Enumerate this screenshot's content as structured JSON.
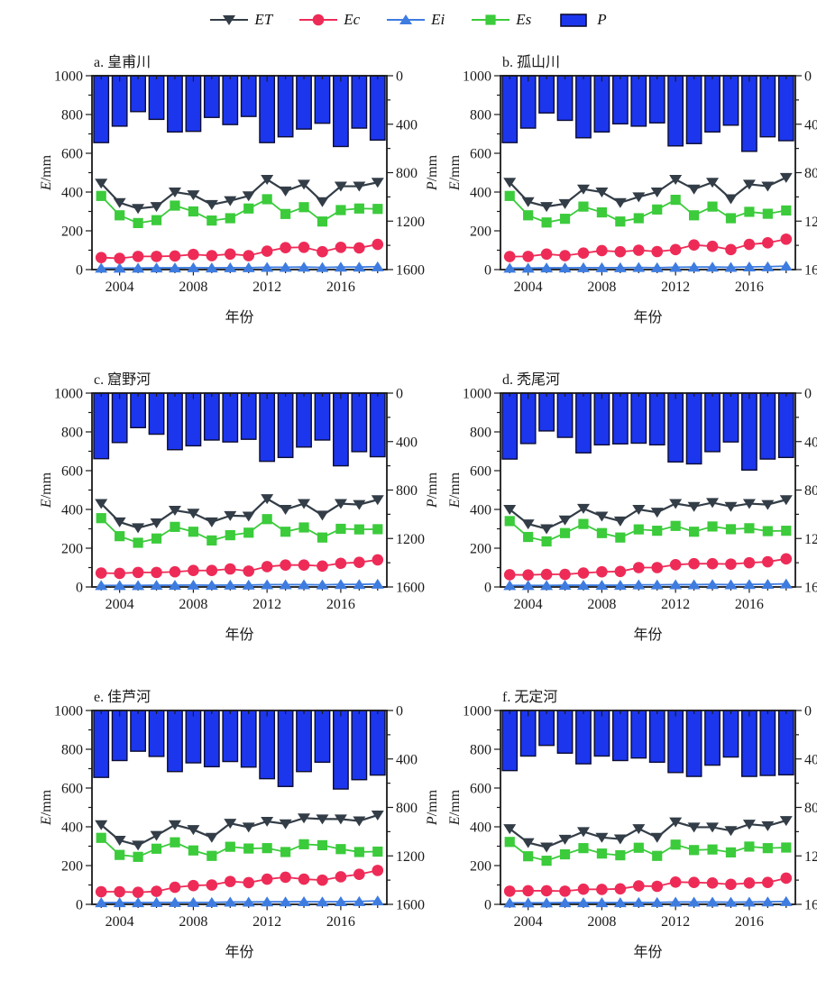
{
  "legend": {
    "items": [
      {
        "label": "ET",
        "marker": "triangle-down",
        "color": "#333d47"
      },
      {
        "label": "Ec",
        "marker": "circle",
        "color": "#ee2b57"
      },
      {
        "label": "Ei",
        "marker": "triangle-up",
        "color": "#3e7ce0"
      },
      {
        "label": "Es",
        "marker": "square",
        "color": "#3bcb3b"
      },
      {
        "label": "P",
        "marker": "bar",
        "color": "#1c36ee"
      }
    ]
  },
  "colors": {
    "ET": "#333d47",
    "Ec": "#ee2b57",
    "Ei": "#3e7ce0",
    "Es": "#3bcb3b",
    "P": "#1c36ee",
    "P_edge": "#0c0c32",
    "axis": "#1a1a1a"
  },
  "chart_data": {
    "type": "bar",
    "subtype": "combo bar+line, 6 panels; bars (P) hang from top on inverted right axis, lines (ET,Ec,Ei,Es) on left axis",
    "x": [
      2003,
      2004,
      2005,
      2006,
      2007,
      2008,
      2009,
      2010,
      2011,
      2012,
      2013,
      2014,
      2015,
      2016,
      2017,
      2018
    ],
    "x_label": "年份",
    "x_ticks": [
      2004,
      2008,
      2012,
      2016
    ],
    "left_axis": {
      "label_main": "E",
      "label_unit": "/mm",
      "range": [
        0,
        1000
      ],
      "major_step": 200,
      "minor_step": 100
    },
    "right_axis": {
      "label_main": "P",
      "label_unit": "/mm",
      "range": [
        0,
        1600
      ],
      "major_step": 400,
      "minor_step": 200,
      "inverted": true
    },
    "grid": false,
    "legend_position": "top-center",
    "panels": [
      {
        "id": "a",
        "title": "a. 皇甫川",
        "P": [
          552,
          416,
          296,
          360,
          464,
          459,
          344,
          403,
          336,
          552,
          504,
          440,
          392,
          584,
          432,
          531
        ],
        "ET": [
          445,
          345,
          315,
          325,
          400,
          385,
          335,
          355,
          380,
          465,
          405,
          440,
          350,
          430,
          430,
          450
        ],
        "Es": [
          380,
          280,
          240,
          255,
          330,
          300,
          253,
          265,
          315,
          363,
          287,
          322,
          248,
          307,
          315,
          313
        ],
        "Ec": [
          62,
          58,
          68,
          68,
          70,
          78,
          72,
          80,
          72,
          95,
          113,
          115,
          92,
          115,
          112,
          130
        ],
        "Ei": [
          8,
          8,
          8,
          9,
          9,
          10,
          9,
          10,
          10,
          12,
          12,
          13,
          11,
          13,
          13,
          15
        ]
      },
      {
        "id": "b",
        "title": "b. 孤山川",
        "P": [
          552,
          432,
          307,
          368,
          512,
          464,
          397,
          416,
          389,
          579,
          560,
          464,
          408,
          624,
          504,
          536
        ],
        "ET": [
          450,
          350,
          325,
          340,
          415,
          400,
          345,
          375,
          400,
          465,
          415,
          450,
          365,
          440,
          430,
          475
        ],
        "Es": [
          380,
          280,
          243,
          262,
          325,
          295,
          248,
          265,
          310,
          360,
          280,
          325,
          265,
          298,
          288,
          305
        ],
        "Ec": [
          67,
          68,
          80,
          72,
          85,
          98,
          92,
          100,
          93,
          103,
          127,
          120,
          103,
          130,
          138,
          157
        ],
        "Ei": [
          8,
          8,
          9,
          9,
          10,
          10,
          10,
          11,
          10,
          12,
          13,
          13,
          12,
          14,
          15,
          18
        ]
      },
      {
        "id": "c",
        "title": "c. 窟野河",
        "P": [
          541,
          408,
          285,
          339,
          467,
          435,
          387,
          403,
          381,
          563,
          531,
          445,
          387,
          600,
          483,
          525
        ],
        "ET": [
          430,
          335,
          305,
          330,
          395,
          380,
          335,
          368,
          365,
          455,
          400,
          430,
          370,
          430,
          425,
          450
        ],
        "Es": [
          355,
          262,
          228,
          250,
          310,
          285,
          240,
          267,
          280,
          350,
          285,
          307,
          255,
          300,
          297,
          298
        ],
        "Ec": [
          72,
          70,
          75,
          75,
          78,
          85,
          85,
          93,
          82,
          105,
          113,
          113,
          108,
          122,
          127,
          140
        ],
        "Ei": [
          8,
          8,
          8,
          9,
          9,
          10,
          9,
          10,
          10,
          12,
          12,
          12,
          11,
          13,
          13,
          15
        ]
      },
      {
        "id": "d",
        "title": "d. 秃尾河",
        "P": [
          544,
          416,
          312,
          365,
          493,
          427,
          419,
          413,
          427,
          568,
          584,
          483,
          403,
          635,
          544,
          531
        ],
        "ET": [
          400,
          325,
          300,
          345,
          405,
          365,
          340,
          400,
          385,
          430,
          415,
          435,
          415,
          430,
          425,
          450
        ],
        "Es": [
          340,
          258,
          235,
          278,
          325,
          278,
          255,
          297,
          290,
          315,
          285,
          312,
          298,
          303,
          288,
          290
        ],
        "Ec": [
          63,
          62,
          65,
          65,
          72,
          78,
          80,
          100,
          100,
          115,
          120,
          120,
          118,
          125,
          130,
          145
        ],
        "Ei": [
          8,
          8,
          8,
          9,
          9,
          9,
          9,
          11,
          11,
          12,
          12,
          13,
          12,
          13,
          14,
          16
        ]
      },
      {
        "id": "e",
        "title": "e. 佳芦河",
        "P": [
          552,
          413,
          336,
          379,
          504,
          432,
          464,
          421,
          467,
          563,
          627,
          504,
          427,
          648,
          571,
          533
        ],
        "ET": [
          410,
          330,
          305,
          355,
          410,
          385,
          345,
          418,
          398,
          428,
          415,
          445,
          440,
          440,
          430,
          460
        ],
        "Es": [
          343,
          255,
          245,
          287,
          320,
          278,
          250,
          297,
          288,
          290,
          270,
          310,
          305,
          285,
          270,
          272
        ],
        "Ec": [
          65,
          65,
          62,
          67,
          88,
          97,
          100,
          118,
          112,
          130,
          140,
          130,
          125,
          142,
          155,
          175
        ],
        "Ei": [
          9,
          9,
          9,
          10,
          10,
          10,
          10,
          12,
          12,
          13,
          13,
          14,
          13,
          14,
          15,
          18
        ]
      },
      {
        "id": "f",
        "title": "f. 无定河",
        "P": [
          496,
          376,
          288,
          352,
          440,
          376,
          413,
          392,
          427,
          512,
          544,
          451,
          384,
          544,
          536,
          531
        ],
        "ET": [
          390,
          318,
          295,
          335,
          375,
          345,
          337,
          390,
          345,
          425,
          398,
          398,
          380,
          413,
          405,
          432
        ],
        "Es": [
          322,
          248,
          225,
          258,
          290,
          262,
          253,
          292,
          250,
          308,
          280,
          283,
          268,
          298,
          290,
          293
        ],
        "Ec": [
          68,
          70,
          70,
          68,
          78,
          77,
          80,
          95,
          93,
          115,
          113,
          110,
          103,
          110,
          113,
          135
        ],
        "Ei": [
          8,
          8,
          8,
          9,
          9,
          9,
          9,
          10,
          10,
          12,
          12,
          12,
          11,
          12,
          13,
          15
        ]
      }
    ]
  }
}
